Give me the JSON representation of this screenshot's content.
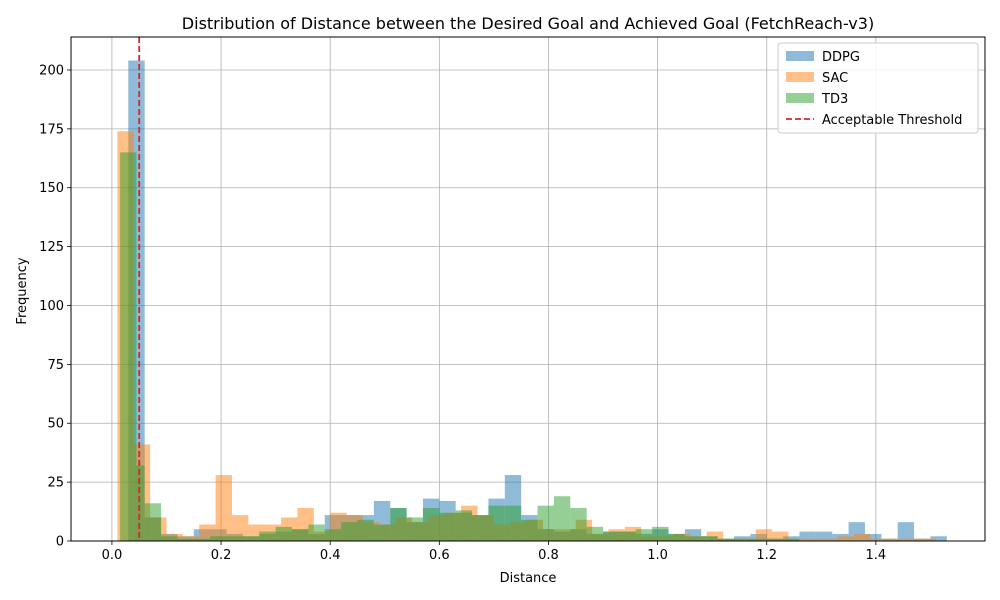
{
  "chart_data": {
    "type": "histogram",
    "title": "Distribution of Distance between the Desired Goal and Achieved Goal (FetchReach-v3)",
    "xlabel": "Distance",
    "ylabel": "Frequency",
    "xlim": [
      -0.075,
      1.6
    ],
    "ylim": [
      0,
      214
    ],
    "xticks": [
      0.0,
      0.2,
      0.4,
      0.6,
      0.8,
      1.0,
      1.2,
      1.4
    ],
    "xtick_labels": [
      "0.0",
      "0.2",
      "0.4",
      "0.6",
      "0.8",
      "1.0",
      "1.2",
      "1.4"
    ],
    "yticks": [
      0,
      25,
      50,
      75,
      100,
      125,
      150,
      175,
      200
    ],
    "ytick_labels": [
      "0",
      "25",
      "50",
      "75",
      "100",
      "125",
      "150",
      "175",
      "200"
    ],
    "grid": true,
    "legend_position": "top-right",
    "threshold": {
      "label": "Acceptable Threshold",
      "x": 0.05,
      "color": "#d62728",
      "style": "dashed"
    },
    "series": [
      {
        "name": "DDPG",
        "color": "#1f77b4",
        "opacity": 0.5,
        "bins": [
          [
            0.03,
            0.06,
            204
          ],
          [
            0.06,
            0.09,
            10
          ],
          [
            0.09,
            0.12,
            3
          ],
          [
            0.12,
            0.15,
            2
          ],
          [
            0.15,
            0.18,
            5
          ],
          [
            0.18,
            0.21,
            5
          ],
          [
            0.21,
            0.24,
            3
          ],
          [
            0.24,
            0.27,
            2
          ],
          [
            0.27,
            0.3,
            3
          ],
          [
            0.3,
            0.33,
            4
          ],
          [
            0.33,
            0.36,
            5
          ],
          [
            0.36,
            0.39,
            3
          ],
          [
            0.39,
            0.42,
            11
          ],
          [
            0.42,
            0.45,
            11
          ],
          [
            0.45,
            0.48,
            11
          ],
          [
            0.48,
            0.51,
            17
          ],
          [
            0.51,
            0.54,
            14
          ],
          [
            0.54,
            0.57,
            8
          ],
          [
            0.57,
            0.6,
            18
          ],
          [
            0.6,
            0.63,
            17
          ],
          [
            0.63,
            0.66,
            12
          ],
          [
            0.66,
            0.69,
            11
          ],
          [
            0.69,
            0.72,
            18
          ],
          [
            0.72,
            0.75,
            28
          ],
          [
            0.75,
            0.78,
            11
          ],
          [
            0.78,
            0.81,
            5
          ],
          [
            0.81,
            0.84,
            4
          ],
          [
            0.84,
            0.87,
            5
          ],
          [
            0.87,
            0.9,
            3
          ],
          [
            0.9,
            0.93,
            4
          ],
          [
            0.93,
            0.96,
            4
          ],
          [
            0.96,
            0.99,
            3
          ],
          [
            0.99,
            1.02,
            5
          ],
          [
            1.02,
            1.05,
            3
          ],
          [
            1.05,
            1.08,
            5
          ],
          [
            1.08,
            1.11,
            2
          ],
          [
            1.11,
            1.14,
            1
          ],
          [
            1.14,
            1.17,
            2
          ],
          [
            1.17,
            1.2,
            3
          ],
          [
            1.2,
            1.23,
            1
          ],
          [
            1.23,
            1.26,
            2
          ],
          [
            1.26,
            1.29,
            4
          ],
          [
            1.29,
            1.32,
            4
          ],
          [
            1.32,
            1.35,
            3
          ],
          [
            1.35,
            1.38,
            8
          ],
          [
            1.38,
            1.41,
            3
          ],
          [
            1.41,
            1.44,
            1
          ],
          [
            1.44,
            1.47,
            8
          ],
          [
            1.47,
            1.5,
            1
          ],
          [
            1.5,
            1.53,
            2
          ]
        ]
      },
      {
        "name": "SAC",
        "color": "#ff7f0e",
        "opacity": 0.5,
        "bins": [
          [
            0.01,
            0.04,
            174
          ],
          [
            0.04,
            0.07,
            41
          ],
          [
            0.07,
            0.1,
            10
          ],
          [
            0.1,
            0.13,
            3
          ],
          [
            0.13,
            0.16,
            2
          ],
          [
            0.16,
            0.19,
            7
          ],
          [
            0.19,
            0.22,
            28
          ],
          [
            0.22,
            0.25,
            11
          ],
          [
            0.25,
            0.28,
            7
          ],
          [
            0.28,
            0.31,
            7
          ],
          [
            0.31,
            0.34,
            10
          ],
          [
            0.34,
            0.37,
            14
          ],
          [
            0.37,
            0.4,
            4
          ],
          [
            0.4,
            0.43,
            12
          ],
          [
            0.43,
            0.46,
            11
          ],
          [
            0.46,
            0.49,
            8
          ],
          [
            0.49,
            0.52,
            7
          ],
          [
            0.52,
            0.55,
            10
          ],
          [
            0.55,
            0.58,
            8
          ],
          [
            0.58,
            0.61,
            11
          ],
          [
            0.61,
            0.64,
            12
          ],
          [
            0.64,
            0.67,
            15
          ],
          [
            0.67,
            0.7,
            11
          ],
          [
            0.7,
            0.73,
            7
          ],
          [
            0.73,
            0.76,
            8
          ],
          [
            0.76,
            0.79,
            9
          ],
          [
            0.79,
            0.82,
            5
          ],
          [
            0.82,
            0.85,
            5
          ],
          [
            0.85,
            0.88,
            9
          ],
          [
            0.88,
            0.91,
            3
          ],
          [
            0.91,
            0.94,
            5
          ],
          [
            0.94,
            0.97,
            6
          ],
          [
            0.97,
            1.0,
            2
          ],
          [
            1.0,
            1.03,
            2
          ],
          [
            1.03,
            1.06,
            3
          ],
          [
            1.06,
            1.09,
            2
          ],
          [
            1.09,
            1.12,
            4
          ],
          [
            1.12,
            1.15,
            1
          ],
          [
            1.15,
            1.18,
            1
          ],
          [
            1.18,
            1.21,
            5
          ],
          [
            1.21,
            1.24,
            4
          ],
          [
            1.24,
            1.27,
            1
          ],
          [
            1.27,
            1.3,
            1
          ],
          [
            1.3,
            1.33,
            1
          ],
          [
            1.33,
            1.36,
            2
          ],
          [
            1.36,
            1.39,
            3
          ],
          [
            1.39,
            1.42,
            1
          ],
          [
            1.42,
            1.45,
            1
          ],
          [
            1.45,
            1.48,
            1
          ],
          [
            1.48,
            1.51,
            1
          ]
        ]
      },
      {
        "name": "TD3",
        "color": "#2ca02c",
        "opacity": 0.5,
        "bins": [
          [
            0.015,
            0.045,
            165
          ],
          [
            0.045,
            0.06,
            32
          ],
          [
            0.06,
            0.09,
            16
          ],
          [
            0.09,
            0.12,
            2
          ],
          [
            0.12,
            0.15,
            1
          ],
          [
            0.15,
            0.18,
            1
          ],
          [
            0.18,
            0.21,
            2
          ],
          [
            0.21,
            0.24,
            2
          ],
          [
            0.24,
            0.27,
            2
          ],
          [
            0.27,
            0.3,
            4
          ],
          [
            0.3,
            0.33,
            6
          ],
          [
            0.33,
            0.36,
            5
          ],
          [
            0.36,
            0.39,
            7
          ],
          [
            0.39,
            0.42,
            5
          ],
          [
            0.42,
            0.45,
            8
          ],
          [
            0.45,
            0.48,
            9
          ],
          [
            0.48,
            0.51,
            7
          ],
          [
            0.51,
            0.54,
            14
          ],
          [
            0.54,
            0.57,
            10
          ],
          [
            0.57,
            0.6,
            14
          ],
          [
            0.6,
            0.63,
            12
          ],
          [
            0.63,
            0.66,
            13
          ],
          [
            0.66,
            0.69,
            11
          ],
          [
            0.69,
            0.72,
            15
          ],
          [
            0.72,
            0.75,
            15
          ],
          [
            0.75,
            0.78,
            9
          ],
          [
            0.78,
            0.81,
            15
          ],
          [
            0.81,
            0.84,
            19
          ],
          [
            0.84,
            0.87,
            14
          ],
          [
            0.87,
            0.9,
            6
          ],
          [
            0.9,
            0.93,
            4
          ],
          [
            0.93,
            0.96,
            4
          ],
          [
            0.96,
            0.99,
            5
          ],
          [
            0.99,
            1.02,
            6
          ],
          [
            1.02,
            1.05,
            3
          ],
          [
            1.05,
            1.08,
            2
          ],
          [
            1.08,
            1.11,
            2
          ],
          [
            1.11,
            1.14,
            1
          ],
          [
            1.14,
            1.17,
            1
          ],
          [
            1.17,
            1.2,
            1
          ],
          [
            1.2,
            1.23,
            1
          ],
          [
            1.23,
            1.26,
            1
          ]
        ]
      }
    ]
  }
}
